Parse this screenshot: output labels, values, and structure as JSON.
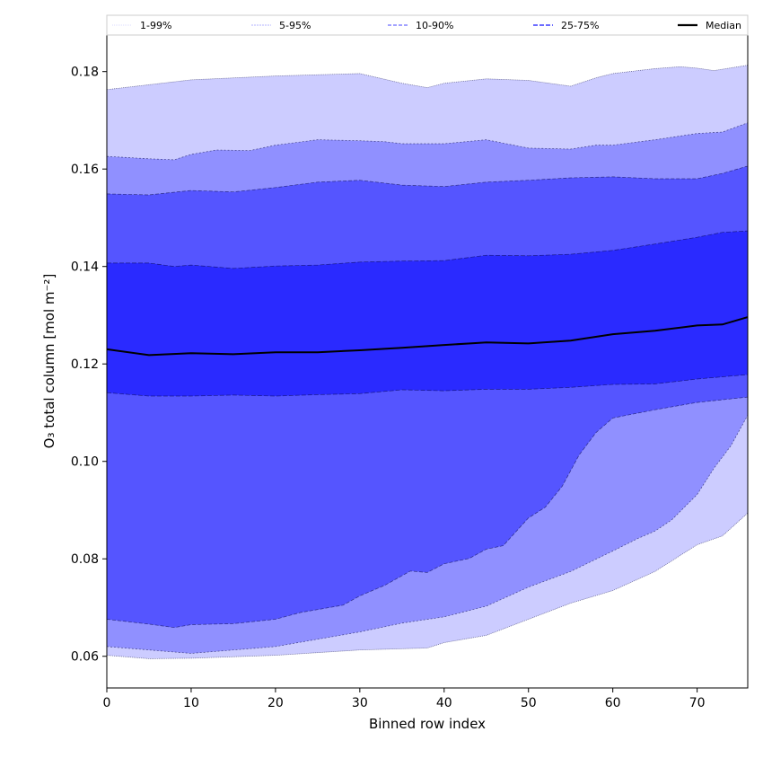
{
  "chart_data": {
    "type": "area",
    "title": "",
    "xlabel": "Binned row index",
    "ylabel": "O₃ total column [mol m⁻²]",
    "xlim": [
      0,
      76
    ],
    "ylim": [
      0.0535,
      0.1875
    ],
    "xticks": [
      0,
      10,
      20,
      30,
      40,
      50,
      60,
      70
    ],
    "yticks": [
      0.06,
      0.08,
      0.1,
      0.12,
      0.14,
      0.16,
      0.18
    ],
    "ytick_labels": [
      "0.06",
      "0.08",
      "0.10",
      "0.12",
      "0.14",
      "0.16",
      "0.18"
    ],
    "grid": false,
    "legend_position": "top",
    "legend": [
      {
        "label": "1-99%",
        "color": "#d0d0ff"
      },
      {
        "label": "5-95%",
        "color": "#9a9aff"
      },
      {
        "label": "10-90%",
        "color": "#6b6bff"
      },
      {
        "label": "25-75%",
        "color": "#3b3bff"
      },
      {
        "label": "Median",
        "color": "#000000"
      }
    ],
    "bands": [
      {
        "name": "1-99%",
        "fill": "#ccccff",
        "upper": [
          [
            0,
            0.1763
          ],
          [
            10,
            0.1783
          ],
          [
            20,
            0.1791
          ],
          [
            30,
            0.1796
          ],
          [
            35,
            0.1776
          ],
          [
            38,
            0.1767
          ],
          [
            40,
            0.1776
          ],
          [
            45,
            0.1785
          ],
          [
            50,
            0.1782
          ],
          [
            55,
            0.177
          ],
          [
            58,
            0.1787
          ],
          [
            60,
            0.1796
          ],
          [
            65,
            0.1806
          ],
          [
            68,
            0.181
          ],
          [
            70,
            0.1807
          ],
          [
            72,
            0.1802
          ],
          [
            76,
            0.1813
          ]
        ],
        "lower": [
          [
            0,
            0.0602
          ],
          [
            5,
            0.0595
          ],
          [
            10,
            0.0596
          ],
          [
            20,
            0.0602
          ],
          [
            30,
            0.0613
          ],
          [
            38,
            0.0617
          ],
          [
            40,
            0.0628
          ],
          [
            45,
            0.0643
          ],
          [
            50,
            0.0676
          ],
          [
            55,
            0.0709
          ],
          [
            60,
            0.0735
          ],
          [
            65,
            0.0774
          ],
          [
            70,
            0.0829
          ],
          [
            73,
            0.0847
          ],
          [
            76,
            0.0894
          ]
        ]
      },
      {
        "name": "5-95%",
        "fill": "#9090ff",
        "upper": [
          [
            0,
            0.1626
          ],
          [
            5,
            0.1621
          ],
          [
            8,
            0.1619
          ],
          [
            10,
            0.163
          ],
          [
            13,
            0.1639
          ],
          [
            17,
            0.1638
          ],
          [
            20,
            0.1649
          ],
          [
            25,
            0.166
          ],
          [
            30,
            0.1658
          ],
          [
            33,
            0.1656
          ],
          [
            35,
            0.1652
          ],
          [
            40,
            0.1652
          ],
          [
            45,
            0.166
          ],
          [
            50,
            0.1643
          ],
          [
            55,
            0.1641
          ],
          [
            58,
            0.1649
          ],
          [
            60,
            0.1649
          ],
          [
            65,
            0.166
          ],
          [
            70,
            0.1673
          ],
          [
            73,
            0.1676
          ],
          [
            76,
            0.1695
          ]
        ],
        "lower": [
          [
            0,
            0.062
          ],
          [
            5,
            0.0613
          ],
          [
            10,
            0.0606
          ],
          [
            15,
            0.0613
          ],
          [
            20,
            0.062
          ],
          [
            25,
            0.0635
          ],
          [
            30,
            0.065
          ],
          [
            35,
            0.0668
          ],
          [
            40,
            0.0681
          ],
          [
            45,
            0.0703
          ],
          [
            50,
            0.0742
          ],
          [
            55,
            0.0774
          ],
          [
            60,
            0.0816
          ],
          [
            63,
            0.0842
          ],
          [
            65,
            0.0857
          ],
          [
            67,
            0.088
          ],
          [
            70,
            0.0932
          ],
          [
            72,
            0.0986
          ],
          [
            74,
            0.1032
          ],
          [
            76,
            0.1095
          ]
        ]
      },
      {
        "name": "10-90%",
        "fill": "#5555ff",
        "upper": [
          [
            0,
            0.1549
          ],
          [
            5,
            0.1547
          ],
          [
            10,
            0.1556
          ],
          [
            15,
            0.1553
          ],
          [
            20,
            0.1562
          ],
          [
            25,
            0.1573
          ],
          [
            30,
            0.1577
          ],
          [
            35,
            0.1567
          ],
          [
            40,
            0.1564
          ],
          [
            45,
            0.1573
          ],
          [
            50,
            0.1577
          ],
          [
            55,
            0.1582
          ],
          [
            60,
            0.1584
          ],
          [
            65,
            0.158
          ],
          [
            70,
            0.158
          ],
          [
            73,
            0.1591
          ],
          [
            76,
            0.1606
          ]
        ],
        "lower": [
          [
            0,
            0.0676
          ],
          [
            5,
            0.0666
          ],
          [
            8,
            0.0659
          ],
          [
            10,
            0.0665
          ],
          [
            15,
            0.0667
          ],
          [
            20,
            0.0676
          ],
          [
            23,
            0.069
          ],
          [
            25,
            0.0696
          ],
          [
            28,
            0.0705
          ],
          [
            30,
            0.0724
          ],
          [
            33,
            0.0746
          ],
          [
            36,
            0.0775
          ],
          [
            38,
            0.0772
          ],
          [
            40,
            0.079
          ],
          [
            43,
            0.0801
          ],
          [
            45,
            0.082
          ],
          [
            47,
            0.0827
          ],
          [
            50,
            0.0884
          ],
          [
            52,
            0.0906
          ],
          [
            54,
            0.0949
          ],
          [
            56,
            0.1013
          ],
          [
            58,
            0.1059
          ],
          [
            60,
            0.1089
          ],
          [
            65,
            0.1106
          ],
          [
            70,
            0.1121
          ],
          [
            76,
            0.1132
          ]
        ]
      },
      {
        "name": "25-75%",
        "fill": "#2a2aff",
        "upper": [
          [
            0,
            0.1407
          ],
          [
            5,
            0.1407
          ],
          [
            8,
            0.14
          ],
          [
            10,
            0.1403
          ],
          [
            15,
            0.1396
          ],
          [
            20,
            0.1401
          ],
          [
            25,
            0.1403
          ],
          [
            30,
            0.1409
          ],
          [
            35,
            0.1411
          ],
          [
            40,
            0.1412
          ],
          [
            45,
            0.1423
          ],
          [
            50,
            0.1422
          ],
          [
            55,
            0.1425
          ],
          [
            60,
            0.1433
          ],
          [
            65,
            0.1446
          ],
          [
            70,
            0.146
          ],
          [
            73,
            0.147
          ],
          [
            76,
            0.1473
          ]
        ],
        "lower": [
          [
            0,
            0.1141
          ],
          [
            5,
            0.1134
          ],
          [
            10,
            0.1134
          ],
          [
            15,
            0.1136
          ],
          [
            20,
            0.1134
          ],
          [
            25,
            0.1137
          ],
          [
            30,
            0.1139
          ],
          [
            35,
            0.1147
          ],
          [
            40,
            0.1145
          ],
          [
            45,
            0.1148
          ],
          [
            50,
            0.1148
          ],
          [
            55,
            0.1152
          ],
          [
            60,
            0.1158
          ],
          [
            65,
            0.1159
          ],
          [
            70,
            0.1169
          ],
          [
            76,
            0.1178
          ]
        ]
      }
    ],
    "median": [
      [
        0,
        0.123
      ],
      [
        5,
        0.1218
      ],
      [
        10,
        0.1222
      ],
      [
        15,
        0.122
      ],
      [
        20,
        0.1224
      ],
      [
        25,
        0.1224
      ],
      [
        30,
        0.1228
      ],
      [
        35,
        0.1233
      ],
      [
        40,
        0.1239
      ],
      [
        45,
        0.1244
      ],
      [
        50,
        0.1242
      ],
      [
        55,
        0.1248
      ],
      [
        60,
        0.1261
      ],
      [
        65,
        0.1268
      ],
      [
        70,
        0.1279
      ],
      [
        73,
        0.1281
      ],
      [
        76,
        0.1296
      ]
    ]
  }
}
